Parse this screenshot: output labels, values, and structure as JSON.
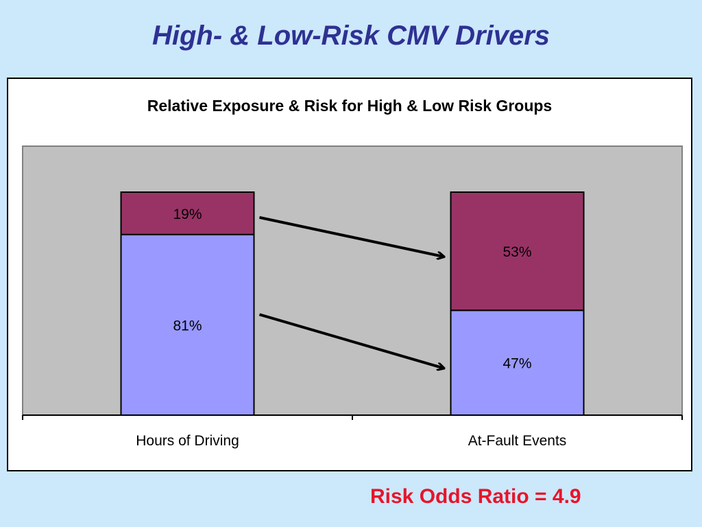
{
  "slide": {
    "title": "High- & Low-Risk CMV Drivers",
    "risk_ratio": "Risk Odds Ratio = 4.9"
  },
  "colors": {
    "background": "#cce8fb",
    "title": "#2e3192",
    "plot_area": "#c0c0c0",
    "low_risk": "#9999ff",
    "high_risk": "#993366",
    "risk_ratio": "#e8142a"
  },
  "chart_data": {
    "type": "bar",
    "stacked": true,
    "title": "Relative Exposure & Risk for High & Low Risk Groups",
    "categories": [
      "Hours of Driving",
      "At-Fault Events"
    ],
    "series": [
      {
        "values": [
          81,
          47
        ],
        "labels": [
          "81%",
          "47%"
        ],
        "color": "#9999ff"
      },
      {
        "values": [
          19,
          53
        ],
        "labels": [
          "19%",
          "53%"
        ],
        "color": "#993366"
      }
    ],
    "ylim": [
      0,
      100
    ],
    "legend": "none",
    "grid": false,
    "annotations": "arrows from Hours of Driving segments to At-Fault Events segments"
  }
}
